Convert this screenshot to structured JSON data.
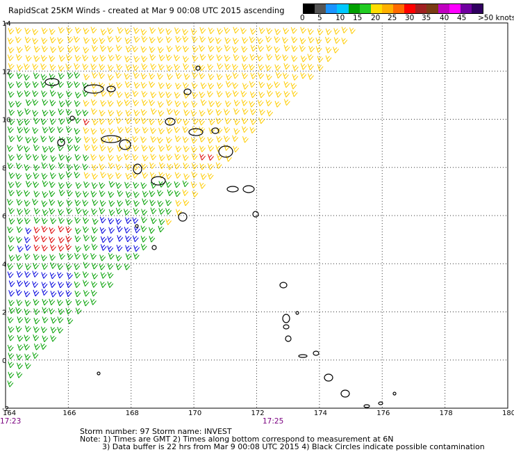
{
  "header": {
    "title": "RapidScat 25KM Winds - created at Mar  9 00:08 UTC 2015 ascending"
  },
  "colorbar": {
    "colors": [
      "#000000",
      "#555555",
      "#1a94ff",
      "#00c8ff",
      "#00a000",
      "#22cc22",
      "#ffdd00",
      "#ffb000",
      "#ff6a00",
      "#ff0000",
      "#a02020",
      "#7a3c14",
      "#c000c0",
      "#ff00ff",
      "#7000a0",
      "#300060"
    ],
    "labels": [
      "0",
      "5",
      "10",
      "15",
      "20",
      "25",
      "30",
      "35",
      "40",
      "45",
      ">50 knots"
    ]
  },
  "map": {
    "lon_ticks": [
      "164",
      "166",
      "168",
      "170",
      "172",
      "174",
      "176",
      "178",
      "180"
    ],
    "lat_ticks": [
      "14",
      "12",
      "10",
      "8",
      "6",
      "4",
      "2",
      "0",
      "-2"
    ],
    "lon_range": [
      164,
      180
    ],
    "lat_range": [
      -2,
      14
    ],
    "grid": true,
    "barb_colors": {
      "yellow": "#ffcc00",
      "green": "#00a000",
      "blue": "#0000dd",
      "red": "#dd0000"
    }
  },
  "time_labels": [
    "17:23",
    "17:25"
  ],
  "footer": {
    "storm_line": "Storm number: 97     Storm name: INVEST",
    "note1": "Note: 1) Times are GMT  2) Times along bottom correspond to measurement at 6N",
    "note2": "3) Data buffer is 22 hrs from Mar  9 00:08 UTC 2015   4) Black Circles indicate possible contamination"
  }
}
